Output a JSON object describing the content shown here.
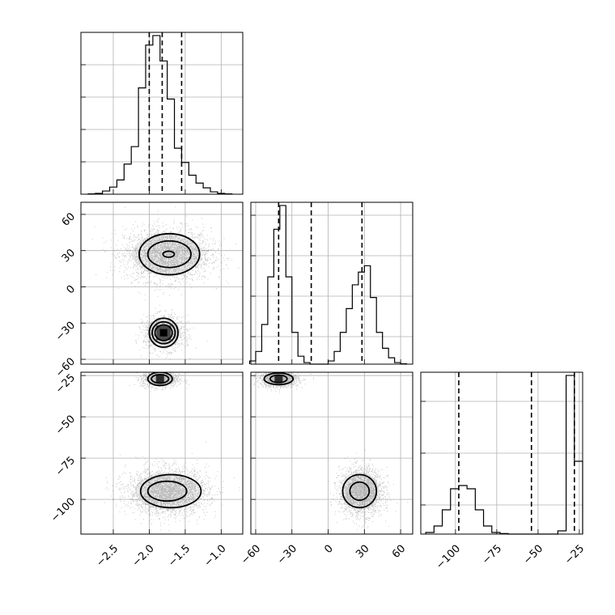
{
  "chart_data": {
    "type": "corner",
    "params": [
      {
        "ticks": [
          -2.5,
          -2.0,
          -1.5,
          -1.0
        ],
        "tick_labels": [
          "−2.5",
          "−2.0",
          "−1.5",
          "−1.0"
        ],
        "range": [
          -2.95,
          -0.7
        ]
      },
      {
        "ticks": [
          -60,
          -30,
          0,
          30,
          60
        ],
        "tick_labels": [
          "−60",
          "−30",
          "0",
          "30",
          "60"
        ],
        "range": [
          -64,
          70
        ]
      },
      {
        "ticks": [
          -100,
          -75,
          -50,
          -25
        ],
        "tick_labels": [
          "−100",
          "−75",
          "−50",
          "−25"
        ],
        "range": [
          -121,
          -23
        ]
      }
    ],
    "histograms": [
      {
        "edges": [
          -2.85,
          -2.75,
          -2.65,
          -2.55,
          -2.45,
          -2.35,
          -2.25,
          -2.15,
          -2.05,
          -1.95,
          -1.85,
          -1.75,
          -1.65,
          -1.55,
          -1.45,
          -1.35,
          -1.25,
          -1.15,
          -1.05,
          -0.95,
          -0.85
        ],
        "counts": [
          0.002,
          0.005,
          0.02,
          0.045,
          0.09,
          0.19,
          0.3,
          0.67,
          0.94,
          1.0,
          0.84,
          0.6,
          0.29,
          0.2,
          0.12,
          0.07,
          0.04,
          0.015,
          0.005,
          0.002
        ],
        "quantiles": [
          -2.0,
          -1.82,
          -1.55
        ],
        "ytick_fractions": [
          0.2,
          0.4,
          0.6,
          0.8,
          1.0
        ]
      },
      {
        "edges": [
          -65,
          -60,
          -55,
          -50,
          -45,
          -40,
          -35,
          -30,
          -25,
          -20,
          -15,
          -10,
          -5,
          0,
          5,
          10,
          15,
          20,
          25,
          30,
          35,
          40,
          45,
          50,
          55,
          60,
          65
        ],
        "counts": [
          0.02,
          0.08,
          0.25,
          0.55,
          0.85,
          1.0,
          0.55,
          0.2,
          0.05,
          0.01,
          0.0,
          0.0,
          0.0,
          0.02,
          0.08,
          0.2,
          0.35,
          0.5,
          0.58,
          0.62,
          0.42,
          0.2,
          0.1,
          0.04,
          0.01,
          0.002
        ],
        "quantiles": [
          -41,
          -14,
          28
        ],
        "ytick_fractions": [
          0.17,
          0.42,
          0.67,
          0.92
        ]
      },
      {
        "edges": [
          -118,
          -113,
          -108,
          -103,
          -98,
          -93,
          -88,
          -83,
          -78,
          -73,
          -68,
          -63,
          -58,
          -53,
          -48,
          -43,
          -38,
          -33,
          -28,
          -23
        ],
        "counts": [
          0.01,
          0.05,
          0.15,
          0.28,
          0.3,
          0.28,
          0.15,
          0.05,
          0.01,
          0.003,
          0.0,
          0.0,
          0.0,
          0.0,
          0.0,
          0.0,
          0.02,
          0.98,
          0.45
        ],
        "quantiles": [
          -98,
          -54,
          -28
        ],
        "ytick_fractions": [
          0.18,
          0.5,
          0.82
        ]
      }
    ],
    "scatter_2d": [
      {
        "x_param": 0,
        "y_param": 1,
        "clusters": [
          {
            "cx": -1.75,
            "cy": 27,
            "sx": 0.3,
            "sy": 11,
            "n": 2600
          },
          {
            "cx": -1.8,
            "cy": -38,
            "sx": 0.14,
            "sy": 7,
            "n": 1300
          }
        ],
        "contours": [
          {
            "cx": -1.72,
            "cy": 27,
            "rx": 0.42,
            "ry": 17
          },
          {
            "cx": -1.72,
            "cy": 27,
            "rx": 0.3,
            "ry": 11
          },
          {
            "cx": -1.73,
            "cy": 27,
            "rx": 0.08,
            "ry": 2.5
          },
          {
            "cx": -1.8,
            "cy": -38,
            "rx": 0.2,
            "ry": 12
          },
          {
            "cx": -1.8,
            "cy": -38,
            "rx": 0.16,
            "ry": 9
          },
          {
            "cx": -1.8,
            "cy": -38,
            "rx": 0.12,
            "ry": 6.5
          }
        ]
      },
      {
        "x_param": 0,
        "y_param": 2,
        "clusters": [
          {
            "cx": -1.75,
            "cy": -95,
            "sx": 0.28,
            "sy": 7,
            "n": 2600
          },
          {
            "cx": -1.85,
            "cy": -27,
            "sx": 0.13,
            "sy": 2.5,
            "n": 900
          }
        ],
        "contours": [
          {
            "cx": -1.7,
            "cy": -95,
            "rx": 0.42,
            "ry": 10
          },
          {
            "cx": -1.75,
            "cy": -95,
            "rx": 0.27,
            "ry": 6
          },
          {
            "cx": -1.85,
            "cy": -27,
            "rx": 0.17,
            "ry": 4
          },
          {
            "cx": -1.85,
            "cy": -27,
            "rx": 0.12,
            "ry": 2.6
          }
        ]
      },
      {
        "x_param": 1,
        "y_param": 2,
        "clusters": [
          {
            "cx": 27,
            "cy": -95,
            "sx": 9,
            "sy": 7,
            "n": 2200
          },
          {
            "cx": -41,
            "cy": -27,
            "sx": 8,
            "sy": 2.5,
            "n": 1200
          }
        ],
        "contours": [
          {
            "cx": 26,
            "cy": -95,
            "rx": 14,
            "ry": 10
          },
          {
            "cx": 26,
            "cy": -95,
            "rx": 8,
            "ry": 5.5
          },
          {
            "cx": -41,
            "cy": -27,
            "rx": 12,
            "ry": 3.5
          },
          {
            "cx": -41,
            "cy": -27,
            "rx": 7,
            "ry": 2.3
          }
        ]
      }
    ],
    "grid": true
  }
}
